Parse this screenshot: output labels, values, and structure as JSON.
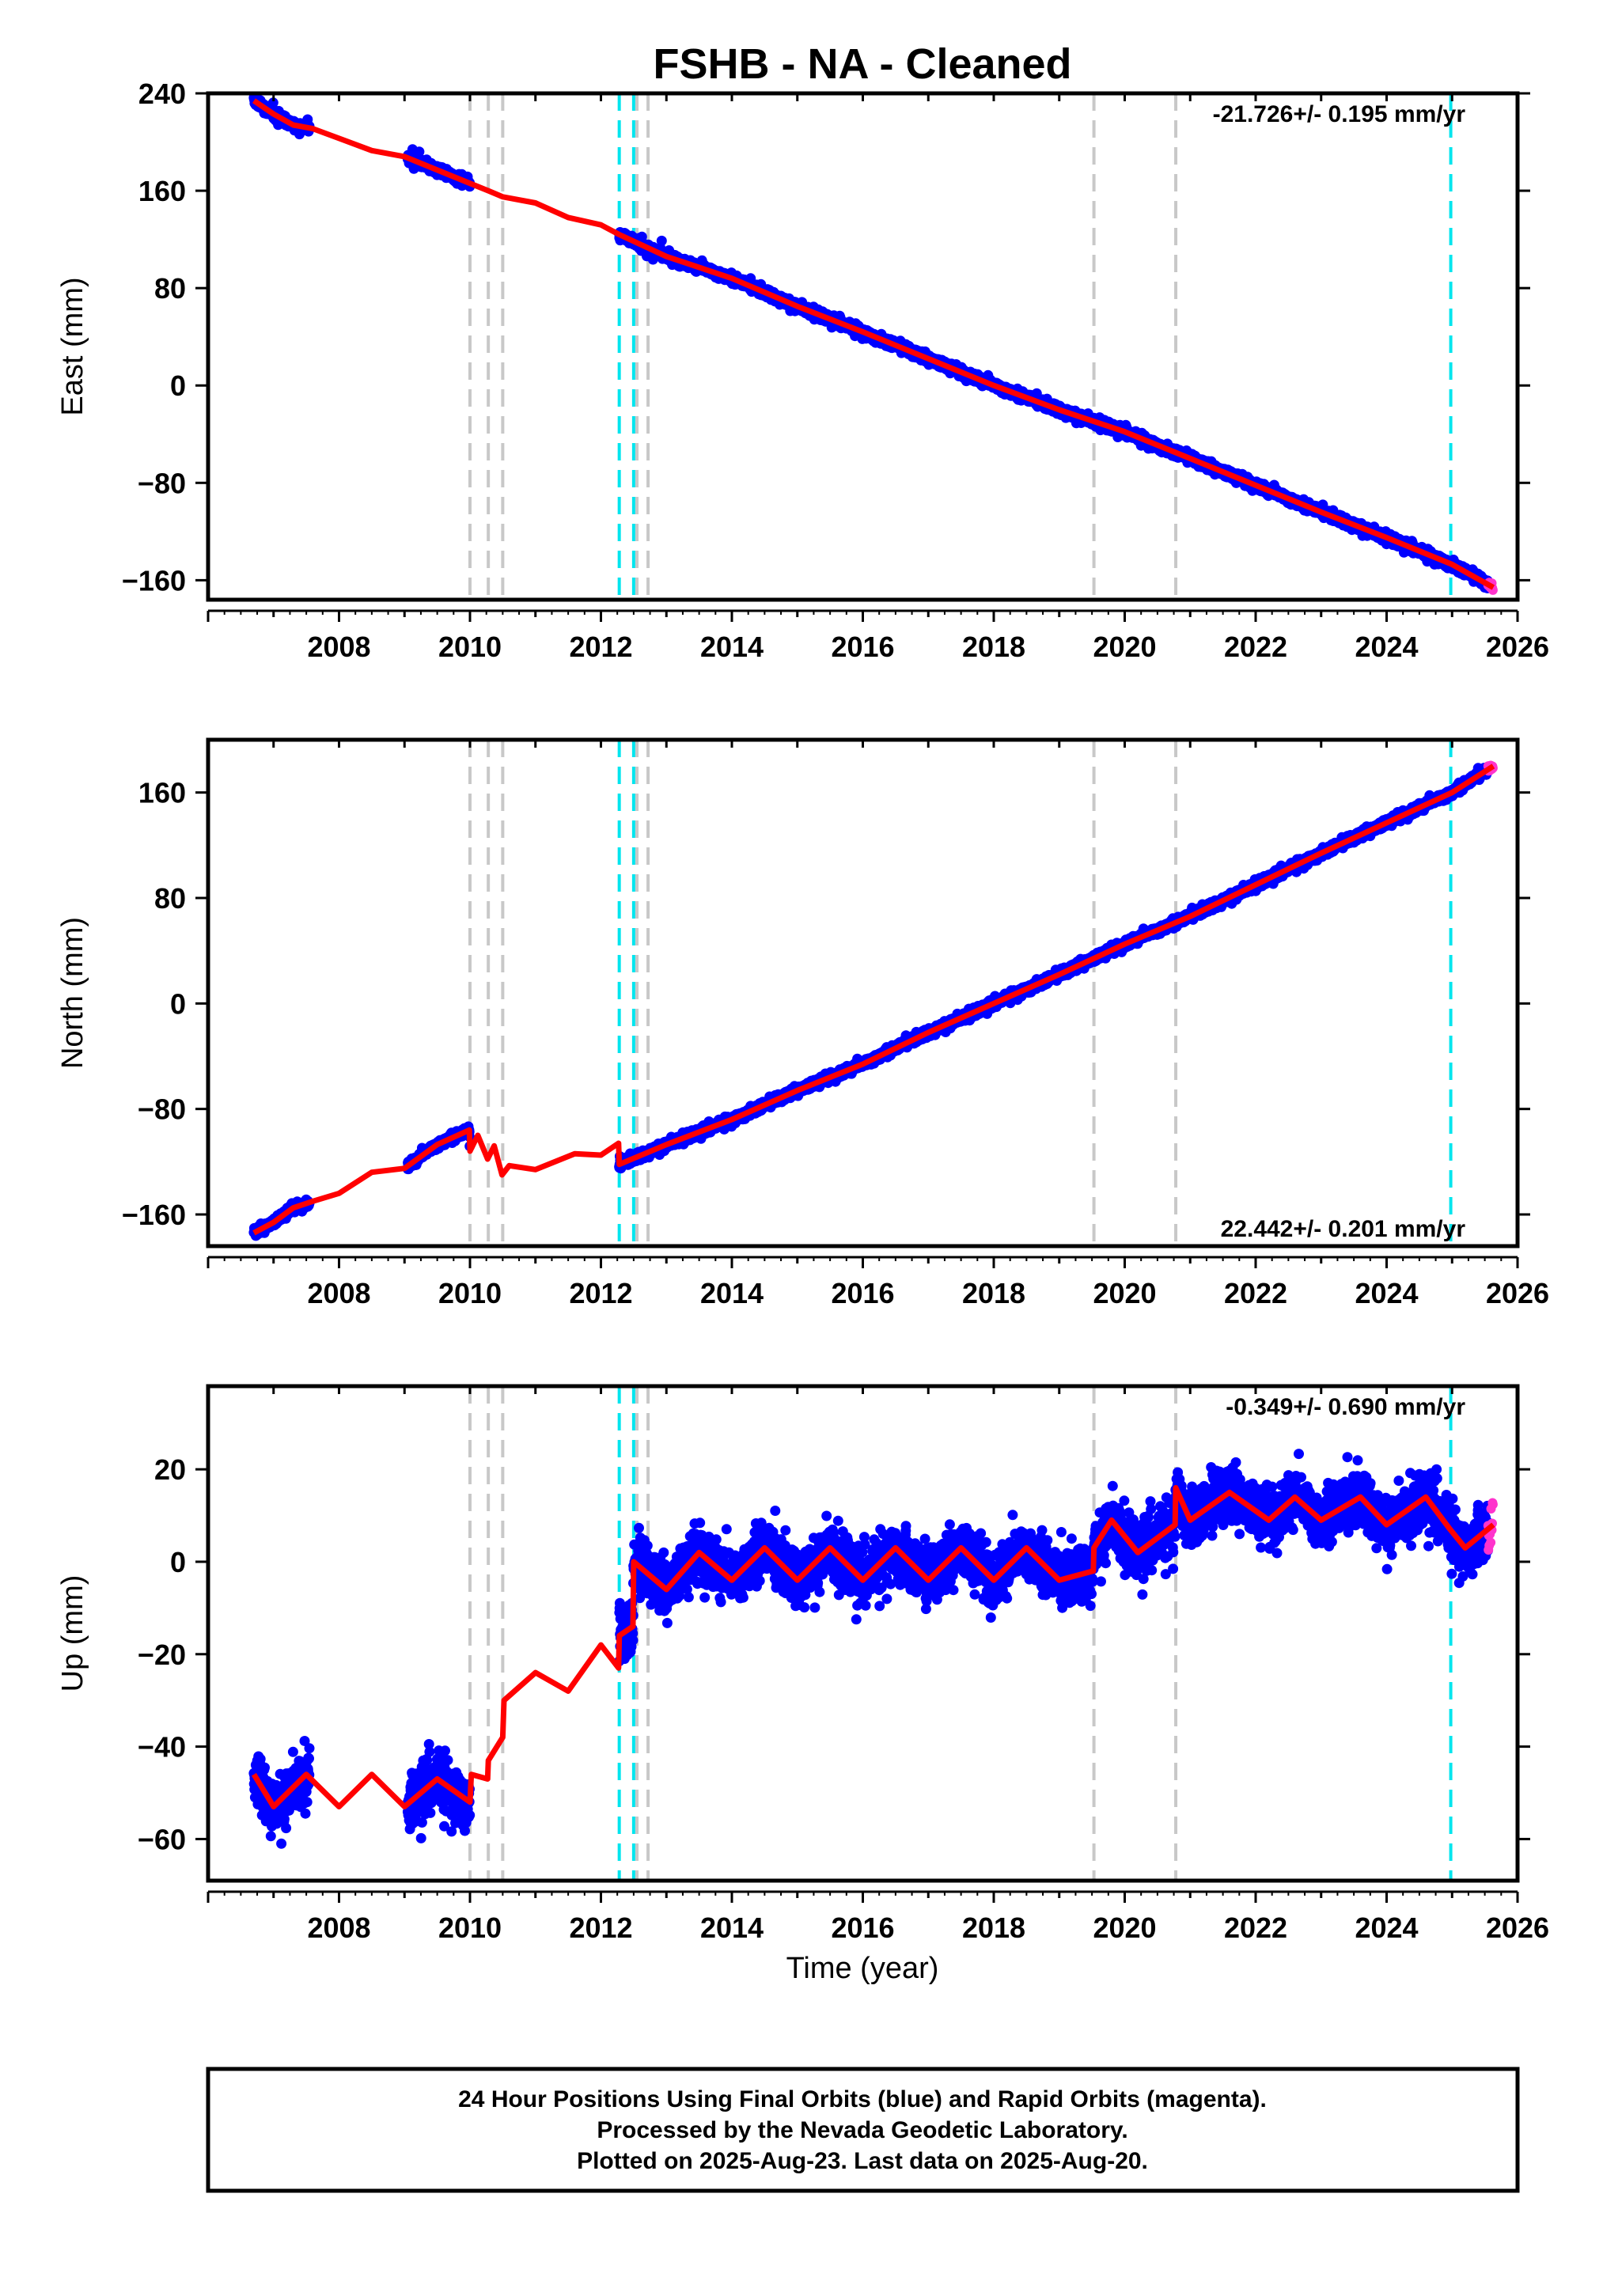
{
  "title": "FSHB  - NA - Cleaned",
  "colors": {
    "final_points": "#0000ff",
    "rapid_points": "#ff33cc",
    "model_line": "#ff0000",
    "equipment_change": "#c8c8c8",
    "earthquake": "#00e5ee",
    "frame": "#000000"
  },
  "xlabel": "Time (year)",
  "footer": [
    "24 Hour Positions Using Final Orbits (blue) and Rapid Orbits (magenta).",
    "Processed by the Nevada Geodetic Laboratory.",
    "Plotted on 2025-Aug-23. Last data on 2025-Aug-20."
  ],
  "chart_data": [
    {
      "type": "scatter",
      "component": "East",
      "ylabel": "East (mm)",
      "xlim": [
        2006.5,
        2025.9
      ],
      "ylim": [
        -176,
        240
      ],
      "x_ticks": [
        2008,
        2010,
        2012,
        2014,
        2016,
        2018,
        2020,
        2022,
        2024,
        2026
      ],
      "y_ticks": [
        -160,
        -80,
        0,
        80,
        160,
        240
      ],
      "y_tick_labels": [
        "−160",
        "−80",
        "0",
        "80",
        "160",
        "240"
      ],
      "rate_text": "-21.726+/- 0.195 mm/yr",
      "rate_position": "top-right",
      "equipment_change_lines": [
        2010.0,
        2010.28,
        2010.5,
        2012.55,
        2012.72,
        2019.53,
        2020.78
      ],
      "earthquake_lines": [
        2012.28,
        2012.5,
        2024.98
      ],
      "data_segments": [
        [
          2006.7,
          2007.55
        ],
        [
          2009.05,
          2010.0
        ],
        [
          2012.28,
          2025.55
        ]
      ],
      "rapid_segment": [
        2025.55,
        2025.63
      ],
      "model_line_points": [
        [
          2006.7,
          234
        ],
        [
          2007.0,
          223
        ],
        [
          2007.3,
          214
        ],
        [
          2007.6,
          211
        ],
        [
          2008.0,
          203
        ],
        [
          2008.5,
          193
        ],
        [
          2009.0,
          188
        ],
        [
          2009.5,
          177
        ],
        [
          2010.0,
          166
        ],
        [
          2010.28,
          160
        ],
        [
          2010.5,
          155
        ],
        [
          2011.0,
          150
        ],
        [
          2011.5,
          138
        ],
        [
          2012.0,
          132
        ],
        [
          2012.28,
          124
        ],
        [
          2013.0,
          106
        ],
        [
          2014.0,
          88
        ],
        [
          2015.0,
          65
        ],
        [
          2016.0,
          44
        ],
        [
          2017.0,
          22
        ],
        [
          2018.0,
          0
        ],
        [
          2019.0,
          -20
        ],
        [
          2020.0,
          -38
        ],
        [
          2021.0,
          -60
        ],
        [
          2022.0,
          -82
        ],
        [
          2023.0,
          -104
        ],
        [
          2024.0,
          -125
        ],
        [
          2025.0,
          -147
        ],
        [
          2025.63,
          -166
        ]
      ],
      "point_scatter_mm": 4.5
    },
    {
      "type": "scatter",
      "component": "North",
      "ylabel": "North (mm)",
      "xlim": [
        2006.5,
        2025.9
      ],
      "ylim": [
        -184,
        200
      ],
      "x_ticks": [
        2008,
        2010,
        2012,
        2014,
        2016,
        2018,
        2020,
        2022,
        2024,
        2026
      ],
      "y_ticks": [
        -160,
        -80,
        0,
        80,
        160
      ],
      "y_tick_labels": [
        "−160",
        "−80",
        "0",
        "80",
        "160"
      ],
      "rate_text": "22.442+/- 0.201 mm/yr",
      "rate_position": "bottom-right",
      "equipment_change_lines": [
        2010.0,
        2010.28,
        2010.5,
        2012.55,
        2012.72,
        2019.53,
        2020.78
      ],
      "earthquake_lines": [
        2012.28,
        2012.5,
        2024.98
      ],
      "data_segments": [
        [
          2006.7,
          2007.55
        ],
        [
          2009.05,
          2010.0
        ],
        [
          2012.28,
          2025.55
        ]
      ],
      "rapid_segment": [
        2025.55,
        2025.63
      ],
      "model_line_points": [
        [
          2006.7,
          -174
        ],
        [
          2007.0,
          -166
        ],
        [
          2007.3,
          -155
        ],
        [
          2007.6,
          -150
        ],
        [
          2008.0,
          -144
        ],
        [
          2008.5,
          -128
        ],
        [
          2009.0,
          -125
        ],
        [
          2009.5,
          -107
        ],
        [
          2009.99,
          -96
        ],
        [
          2010.0,
          -112
        ],
        [
          2010.12,
          -100
        ],
        [
          2010.27,
          -118
        ],
        [
          2010.37,
          -108
        ],
        [
          2010.49,
          -130
        ],
        [
          2010.6,
          -123
        ],
        [
          2011.0,
          -126
        ],
        [
          2011.6,
          -114
        ],
        [
          2012.0,
          -115
        ],
        [
          2012.27,
          -106
        ],
        [
          2012.28,
          -122
        ],
        [
          2013.0,
          -107
        ],
        [
          2014.0,
          -88
        ],
        [
          2015.0,
          -66
        ],
        [
          2016.0,
          -46
        ],
        [
          2017.0,
          -22
        ],
        [
          2018.0,
          0
        ],
        [
          2019.0,
          22
        ],
        [
          2020.0,
          45
        ],
        [
          2021.0,
          66
        ],
        [
          2022.0,
          90
        ],
        [
          2023.0,
          114
        ],
        [
          2024.0,
          137
        ],
        [
          2025.0,
          160
        ],
        [
          2025.63,
          180
        ]
      ],
      "point_scatter_mm": 4
    },
    {
      "type": "scatter",
      "component": "Up",
      "ylabel": "Up (mm)",
      "xlim": [
        2006.5,
        2025.9
      ],
      "ylim": [
        -69,
        38
      ],
      "x_ticks": [
        2008,
        2010,
        2012,
        2014,
        2016,
        2018,
        2020,
        2022,
        2024,
        2026
      ],
      "y_ticks": [
        -60,
        -40,
        -20,
        0,
        20
      ],
      "y_tick_labels": [
        "−60",
        "−40",
        "−20",
        "0",
        "20"
      ],
      "rate_text": "-0.349+/- 0.690 mm/yr",
      "rate_position": "top-right",
      "equipment_change_lines": [
        2010.0,
        2010.28,
        2010.5,
        2012.55,
        2012.72,
        2019.53,
        2020.78
      ],
      "earthquake_lines": [
        2012.28,
        2012.5,
        2024.98
      ],
      "data_segments": [
        [
          2006.7,
          2007.55
        ],
        [
          2009.05,
          2010.0
        ],
        [
          2012.28,
          2025.55
        ]
      ],
      "rapid_segment": [
        2025.55,
        2025.63
      ],
      "model_line_points": [
        [
          2006.7,
          -46
        ],
        [
          2007.0,
          -53
        ],
        [
          2007.5,
          -46
        ],
        [
          2008.0,
          -53
        ],
        [
          2008.5,
          -46
        ],
        [
          2009.0,
          -53
        ],
        [
          2009.5,
          -47
        ],
        [
          2010.0,
          -52
        ],
        [
          2010.02,
          -46
        ],
        [
          2010.27,
          -47
        ],
        [
          2010.28,
          -43
        ],
        [
          2010.5,
          -38
        ],
        [
          2010.52,
          -30
        ],
        [
          2011.0,
          -24
        ],
        [
          2011.5,
          -28
        ],
        [
          2012.0,
          -18
        ],
        [
          2012.27,
          -23
        ],
        [
          2012.28,
          -16
        ],
        [
          2012.49,
          -14
        ],
        [
          2012.5,
          0
        ],
        [
          2013.0,
          -6
        ],
        [
          2013.5,
          2
        ],
        [
          2014.0,
          -4
        ],
        [
          2014.5,
          3
        ],
        [
          2015.0,
          -4
        ],
        [
          2015.5,
          3
        ],
        [
          2016.0,
          -4
        ],
        [
          2016.5,
          3
        ],
        [
          2017.0,
          -4
        ],
        [
          2017.5,
          3
        ],
        [
          2018.0,
          -4
        ],
        [
          2018.5,
          3
        ],
        [
          2019.0,
          -4
        ],
        [
          2019.52,
          -2
        ],
        [
          2019.53,
          3
        ],
        [
          2019.8,
          9
        ],
        [
          2020.2,
          2
        ],
        [
          2020.77,
          8
        ],
        [
          2020.78,
          16
        ],
        [
          2021.0,
          9
        ],
        [
          2021.6,
          15
        ],
        [
          2022.2,
          9
        ],
        [
          2022.6,
          14
        ],
        [
          2023.0,
          9
        ],
        [
          2023.6,
          14
        ],
        [
          2024.0,
          8
        ],
        [
          2024.6,
          14
        ],
        [
          2024.97,
          7
        ],
        [
          2025.2,
          3
        ],
        [
          2025.63,
          8
        ]
      ],
      "point_scatter_mm": 7
    }
  ]
}
